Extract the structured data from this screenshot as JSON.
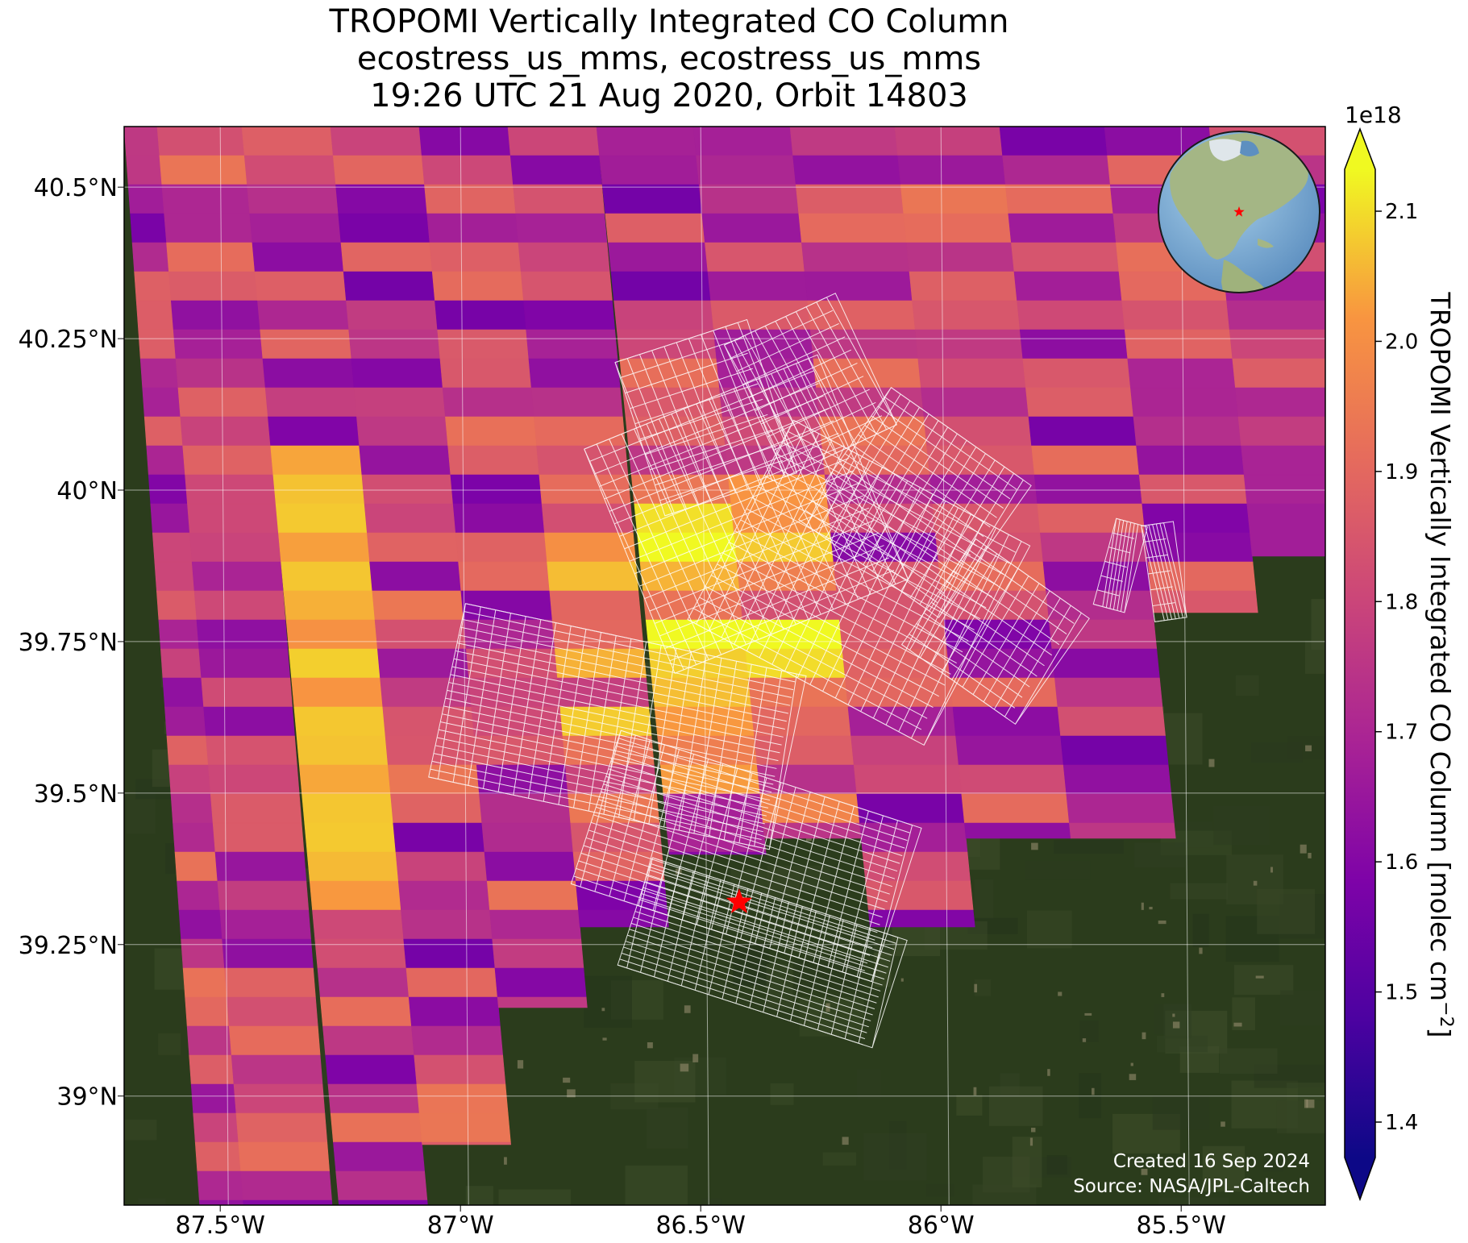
{
  "title": {
    "line1": "TROPOMI Vertically Integrated CO Column",
    "line2": "ecostress_us_mms, ecostress_us_mms",
    "line3": "19:26 UTC 21 Aug 2020, Orbit 14803"
  },
  "map": {
    "lon_range": [
      -87.7,
      -85.2
    ],
    "lat_range": [
      38.82,
      40.6
    ],
    "lon_ticks": [
      -87.5,
      -87.0,
      -86.5,
      -86.0,
      -85.5
    ],
    "lon_tick_labels": [
      "87.5°W",
      "87°W",
      "86.5°W",
      "86°W",
      "85.5°W"
    ],
    "lat_ticks": [
      39.0,
      39.25,
      39.5,
      39.75,
      40.0,
      40.25,
      40.5
    ],
    "lat_tick_labels": [
      "39°N",
      "39.25°N",
      "39.5°N",
      "39.75°N",
      "40°N",
      "40.25°N",
      "40.5°N"
    ],
    "gridlines": true,
    "basemap": "satellite-imagery",
    "site_marker": {
      "lon": -86.42,
      "lat": 39.32,
      "symbol": "red-star",
      "color": "#ff0000"
    },
    "inset_globe": {
      "location": "top-right",
      "marker": "red-star"
    },
    "footprint_outline_color": "#ffffff"
  },
  "credit": {
    "created": "Created 16 Sep 2024",
    "source": "Source: NASA/JPL-Caltech"
  },
  "colorbar": {
    "label": "TROPOMI Vertically Integrated CO Column [molec cm",
    "label_superscript": "−2",
    "label_close": "]",
    "exponent": "1e18",
    "min": 1.4,
    "max": 2.1,
    "extend": "both",
    "colormap": "plasma",
    "ticks": [
      1.4,
      1.5,
      1.6,
      1.7,
      1.8,
      1.9,
      2.0,
      2.1
    ],
    "tick_labels": [
      "1.4",
      "1.5",
      "1.6",
      "1.7",
      "1.8",
      "1.9",
      "2.0",
      "2.1"
    ]
  }
}
